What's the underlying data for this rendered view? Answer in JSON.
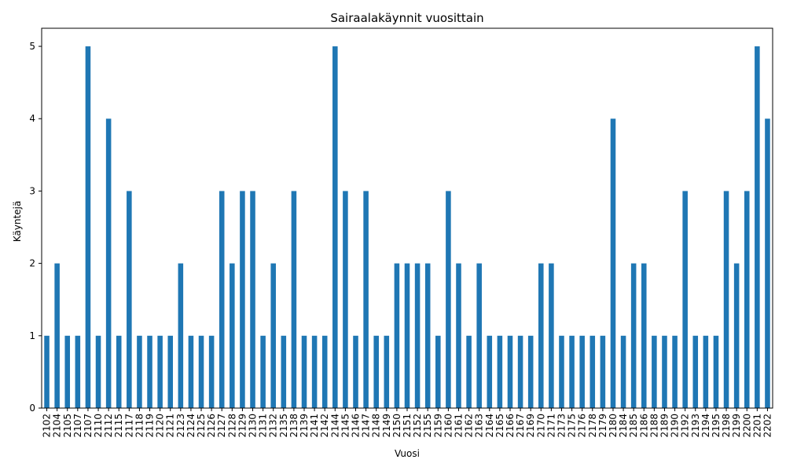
{
  "chart_data": {
    "type": "bar",
    "title": "Sairaalakäynnit vuosittain",
    "xlabel": "Vuosi",
    "ylabel": "Käyntejä",
    "ylim": [
      0,
      5.25
    ],
    "yticks": [
      0,
      1,
      2,
      3,
      4,
      5
    ],
    "grid": false,
    "legend": "none",
    "bar_color": "#1f77b4",
    "categories": [
      "2102",
      "2104",
      "2105",
      "2107",
      "2107",
      "2110",
      "2112",
      "2115",
      "2117",
      "2118",
      "2119",
      "2120",
      "2121",
      "2123",
      "2124",
      "2125",
      "2126",
      "2127",
      "2128",
      "2129",
      "2130",
      "2131",
      "2132",
      "2135",
      "2138",
      "2139",
      "2141",
      "2142",
      "2144",
      "2145",
      "2146",
      "2147",
      "2148",
      "2149",
      "2150",
      "2151",
      "2152",
      "2155",
      "2159",
      "2160",
      "2161",
      "2162",
      "2163",
      "2164",
      "2165",
      "2166",
      "2167",
      "2169",
      "2170",
      "2171",
      "2173",
      "2175",
      "2176",
      "2178",
      "2179",
      "2180",
      "2184",
      "2185",
      "2186",
      "2188",
      "2189",
      "2190",
      "2192",
      "2193",
      "2194",
      "2195",
      "2198",
      "2199",
      "2200",
      "2201",
      "2202"
    ],
    "values": [
      1,
      2,
      1,
      1,
      5,
      1,
      4,
      1,
      3,
      1,
      1,
      1,
      1,
      2,
      1,
      1,
      1,
      3,
      2,
      3,
      3,
      1,
      2,
      1,
      3,
      1,
      1,
      1,
      5,
      3,
      1,
      3,
      1,
      1,
      2,
      2,
      2,
      2,
      1,
      3,
      2,
      1,
      2,
      1,
      1,
      1,
      1,
      1,
      2,
      2,
      1,
      1,
      1,
      1,
      1,
      4,
      1,
      2,
      2,
      1,
      1,
      1,
      3,
      1,
      1,
      1,
      3,
      2,
      3,
      5,
      4
    ]
  }
}
